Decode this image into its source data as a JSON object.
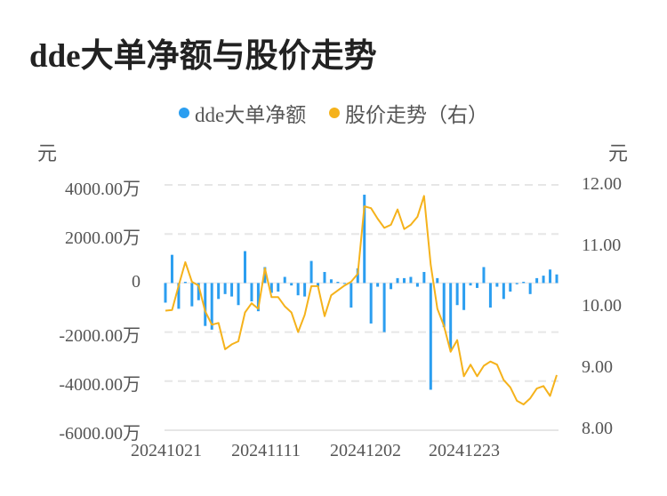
{
  "title": "dde大单净额与股价走势",
  "legend": [
    {
      "label": "dde大单净额",
      "color": "#2b9ef0"
    },
    {
      "label": "股价走势（右）",
      "color": "#f5b21b"
    }
  ],
  "axes": {
    "left_unit": "元",
    "right_unit": "元",
    "left_ticks": [
      "4000.00万",
      "2000.00万",
      "0",
      "-2000.00万",
      "-4000.00万",
      "-6000.00万"
    ],
    "right_ticks": [
      "12.00",
      "11.00",
      "10.00",
      "9.00",
      "8.00"
    ],
    "x_ticks": [
      "20241021",
      "20241111",
      "20241202",
      "20241223"
    ]
  },
  "chart_data": {
    "type": "bar+line",
    "title": "dde大单净额与股价走势",
    "xlabel": "",
    "ylabel_left": "元",
    "ylabel_right": "元",
    "ylim_left": [
      -6000,
      4000
    ],
    "ylim_right": [
      8.0,
      12.0
    ],
    "grid": true,
    "legend_position": "top",
    "x_tick_labels": [
      "20241021",
      "20241111",
      "20241202",
      "20241223"
    ],
    "x_tick_indices": [
      0,
      15,
      30,
      45
    ],
    "series": [
      {
        "name": "dde大单净额",
        "type": "bar",
        "axis": "left",
        "unit": "万",
        "color": "#2b9ef0",
        "values": [
          -800,
          1150,
          -1050,
          50,
          -950,
          -700,
          -1750,
          -1900,
          -650,
          -450,
          -550,
          -900,
          1300,
          -750,
          -1150,
          650,
          -400,
          -350,
          250,
          -100,
          -500,
          -550,
          900,
          -150,
          450,
          150,
          50,
          0,
          -1000,
          600,
          3600,
          -1650,
          -150,
          -2000,
          -250,
          200,
          200,
          250,
          -150,
          450,
          -4350,
          200,
          -1800,
          -2700,
          -900,
          -1100,
          -100,
          -200,
          650,
          -1000,
          -150,
          -650,
          -350,
          -50,
          50,
          -450,
          200,
          300,
          550,
          350
        ]
      },
      {
        "name": "股价走势（右）",
        "type": "line",
        "axis": "right",
        "unit": "元",
        "color": "#f5b21b",
        "values": [
          9.95,
          9.96,
          10.36,
          10.74,
          10.42,
          10.36,
          9.94,
          9.72,
          9.75,
          9.32,
          9.4,
          9.45,
          9.92,
          10.07,
          9.98,
          10.64,
          10.17,
          10.17,
          10.02,
          9.92,
          9.6,
          9.88,
          10.35,
          10.35,
          9.86,
          10.2,
          10.28,
          10.36,
          10.42,
          10.55,
          11.65,
          11.62,
          11.45,
          11.3,
          11.35,
          11.6,
          11.28,
          11.35,
          11.48,
          11.82,
          10.7,
          9.98,
          9.7,
          9.28,
          9.47,
          8.88,
          9.07,
          8.88,
          9.05,
          9.12,
          9.07,
          8.82,
          8.7,
          8.48,
          8.42,
          8.52,
          8.68,
          8.72,
          8.56,
          8.9
        ]
      }
    ]
  }
}
